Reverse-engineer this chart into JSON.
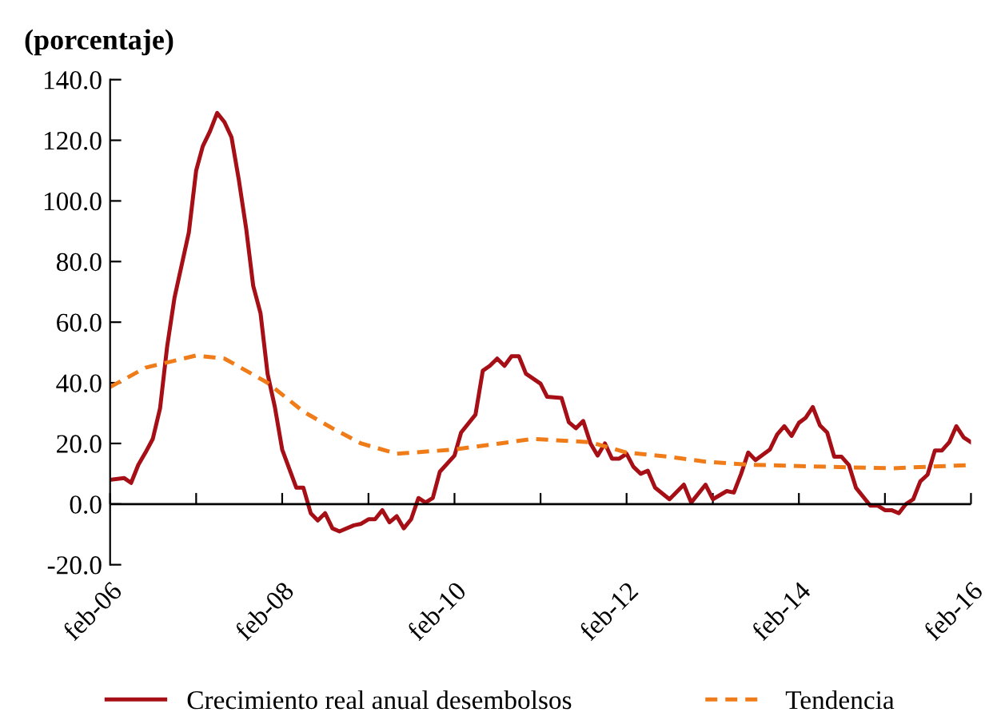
{
  "chart_data": {
    "type": "line",
    "ylabel": "(porcentaje)",
    "xlim": [
      "2006-02",
      "2016-02"
    ],
    "ylim": [
      -20,
      140
    ],
    "xticks": [
      {
        "value": "2006-02",
        "label": "feb-06"
      },
      {
        "value": "2007-02",
        "label": null
      },
      {
        "value": "2008-02",
        "label": "feb-08"
      },
      {
        "value": "2009-02",
        "label": null
      },
      {
        "value": "2010-02",
        "label": "feb-10"
      },
      {
        "value": "2011-02",
        "label": null
      },
      {
        "value": "2012-02",
        "label": "feb-12"
      },
      {
        "value": "2013-02",
        "label": null
      },
      {
        "value": "2014-02",
        "label": "feb-14"
      },
      {
        "value": "2015-02",
        "label": null
      },
      {
        "value": "2016-02",
        "label": "feb-16"
      }
    ],
    "yticks": [
      {
        "value": -20,
        "label": "-20.0"
      },
      {
        "value": 0,
        "label": "0.0"
      },
      {
        "value": 20,
        "label": "20.0"
      },
      {
        "value": 40,
        "label": "40.0"
      },
      {
        "value": 60,
        "label": "60.0"
      },
      {
        "value": 80,
        "label": "80.0"
      },
      {
        "value": 100,
        "label": "100.0"
      },
      {
        "value": 120,
        "label": "120.0"
      },
      {
        "value": 140,
        "label": "140.0"
      }
    ],
    "grid": false,
    "legend": "bottom",
    "ref_lines": [
      {
        "axis": "y",
        "value": 0,
        "color": "#000000"
      }
    ],
    "series": [
      {
        "name": "Crecimiento real anual desembolsos",
        "color": "#a50f15",
        "line_style": "solid",
        "x": [
          "2006-02",
          "2006-04",
          "2006-05",
          "2006-06",
          "2006-07",
          "2006-08",
          "2006-09",
          "2006-10",
          "2006-11",
          "2007-01",
          "2007-02",
          "2007-03",
          "2007-04",
          "2007-05",
          "2007-06",
          "2007-07",
          "2007-08",
          "2007-09",
          "2007-10",
          "2007-11",
          "2007-12",
          "2008-01",
          "2008-02",
          "2008-04",
          "2008-05",
          "2008-06",
          "2008-07",
          "2008-08",
          "2008-09",
          "2008-10",
          "2008-12",
          "2009-01",
          "2009-02",
          "2009-03",
          "2009-04",
          "2009-05",
          "2009-06",
          "2009-07",
          "2009-08",
          "2009-09",
          "2009-10",
          "2009-11",
          "2009-12",
          "2010-02",
          "2010-03",
          "2010-05",
          "2010-06",
          "2010-07",
          "2010-08",
          "2010-09",
          "2010-10",
          "2010-11",
          "2010-12",
          "2011-02",
          "2011-03",
          "2011-05",
          "2011-06",
          "2011-07",
          "2011-08",
          "2011-09",
          "2011-10",
          "2011-11",
          "2011-12",
          "2012-01",
          "2012-02",
          "2012-03",
          "2012-04",
          "2012-05",
          "2012-06",
          "2012-08",
          "2012-10",
          "2012-11",
          "2013-01",
          "2013-02",
          "2013-04",
          "2013-05",
          "2013-06",
          "2013-07",
          "2013-08",
          "2013-10",
          "2013-11",
          "2013-12",
          "2014-01",
          "2014-02",
          "2014-03",
          "2014-04",
          "2014-05",
          "2014-06",
          "2014-07",
          "2014-08",
          "2014-09",
          "2014-10",
          "2014-12",
          "2015-01",
          "2015-02",
          "2015-03",
          "2015-04",
          "2015-05",
          "2015-06",
          "2015-07",
          "2015-08",
          "2015-09",
          "2015-10",
          "2015-11",
          "2015-12",
          "2016-01",
          "2016-02"
        ],
        "values": [
          8,
          8.6,
          7,
          13,
          17,
          21.5,
          31.6,
          52,
          68,
          89.6,
          110,
          118,
          123,
          129,
          126,
          121,
          107,
          91,
          72,
          63,
          43,
          32,
          18,
          5.4,
          5.4,
          -3,
          -5.4,
          -3,
          -8,
          -9,
          -7,
          -6.5,
          -5,
          -5,
          -2,
          -6,
          -4,
          -8,
          -5,
          2,
          0.5,
          2,
          10.7,
          16,
          23.6,
          29.5,
          44,
          45.6,
          48,
          45.6,
          48.8,
          48.8,
          43,
          39.7,
          35.4,
          35,
          27,
          25,
          27.4,
          20,
          16,
          20,
          15,
          15,
          16.6,
          12.3,
          10,
          11,
          5.4,
          1.6,
          6.4,
          0.5,
          6.4,
          1.6,
          4.3,
          3.8,
          10,
          17,
          14.5,
          18,
          23,
          25.7,
          22.5,
          26.8,
          28.4,
          32,
          26,
          23.6,
          15.6,
          15.6,
          12.9,
          5.4,
          -0.5,
          -0.5,
          -2,
          -2,
          -3,
          0,
          1.6,
          7.5,
          9.7,
          17.7,
          17.7,
          20.4,
          25.7,
          22,
          20.4
        ]
      },
      {
        "name": "Tendencia",
        "color": "#f07c19",
        "line_style": "dashed",
        "x": [
          "2006-02",
          "2006-07",
          "2007-02",
          "2007-06",
          "2007-09",
          "2007-12",
          "2008-05",
          "2008-09",
          "2009-01",
          "2009-06",
          "2010-02",
          "2011-01",
          "2011-09",
          "2012-02",
          "2012-08",
          "2013-01",
          "2013-07",
          "2014-06",
          "2015-03",
          "2015-08",
          "2016-02"
        ],
        "values": [
          38.6,
          45,
          49,
          48,
          44,
          40,
          30.5,
          25,
          20,
          16.6,
          18,
          21.5,
          20.4,
          17,
          15.6,
          14,
          13,
          12.3,
          11.8,
          12.3,
          12.9
        ]
      }
    ]
  }
}
